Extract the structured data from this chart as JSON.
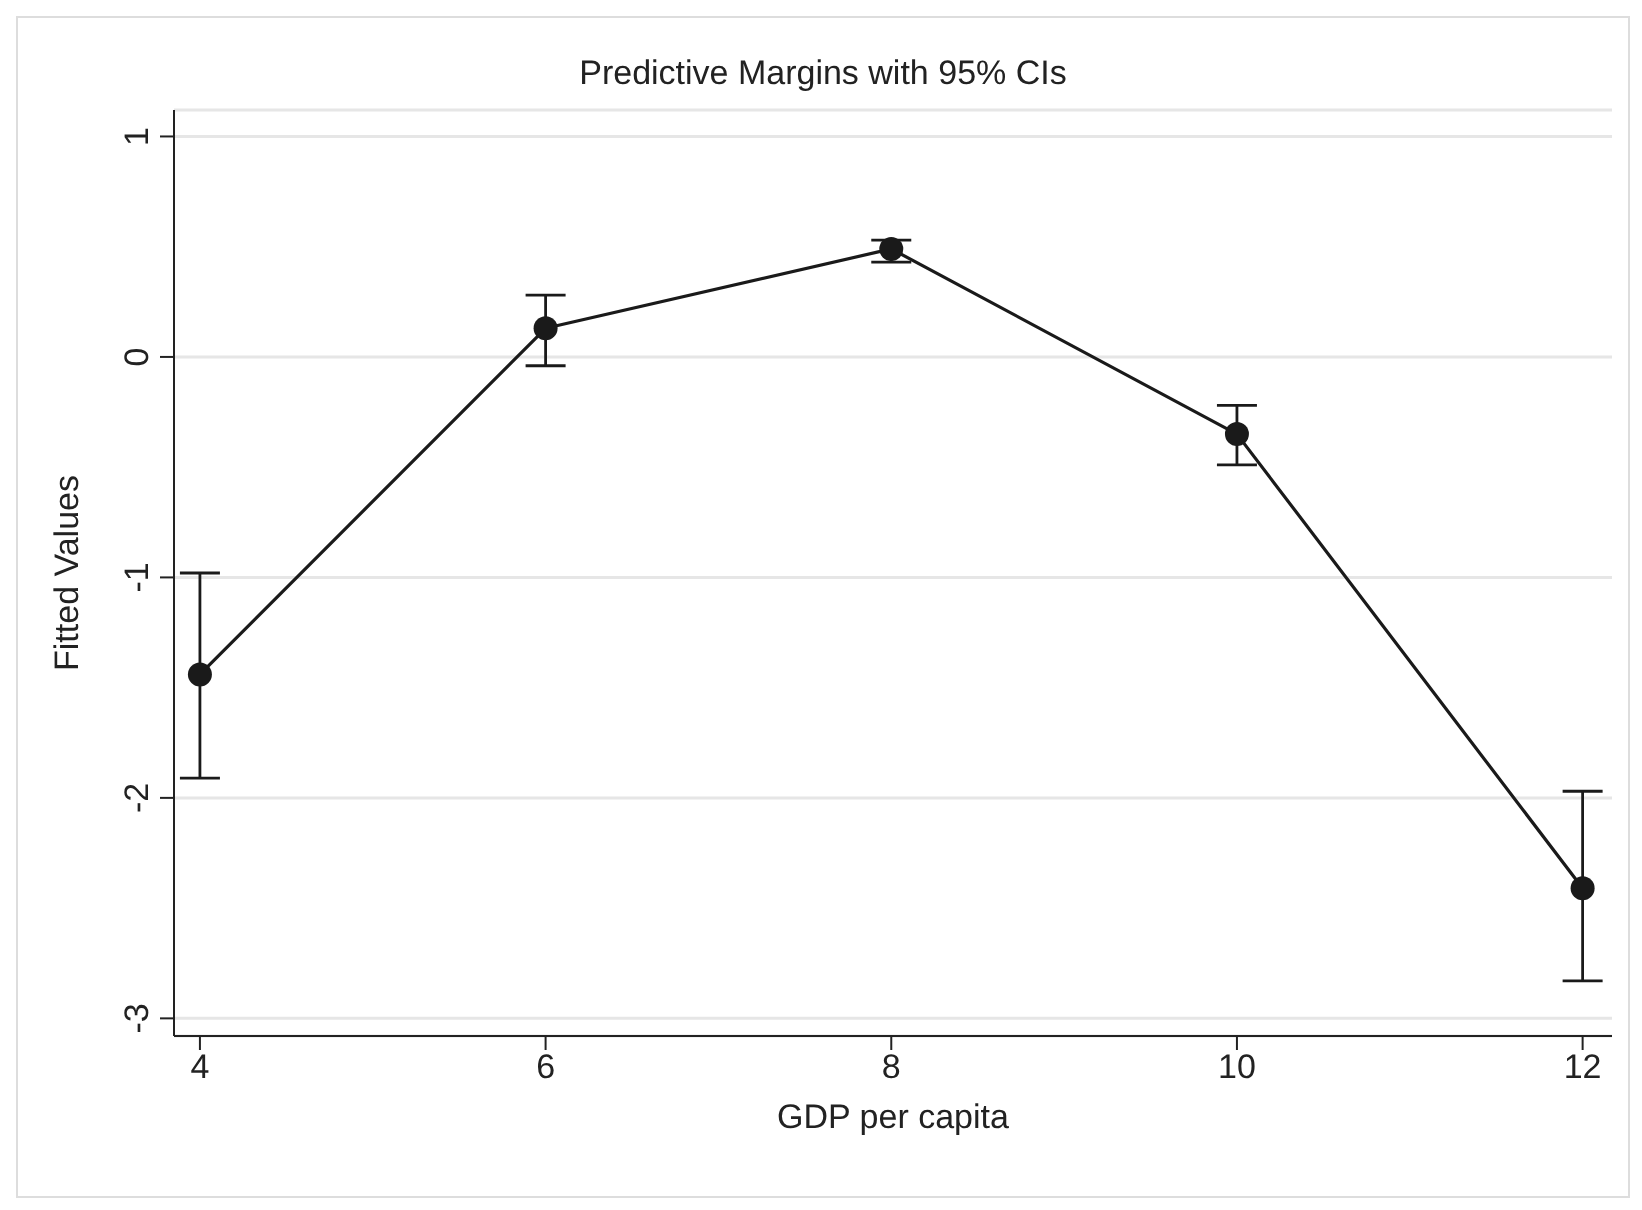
{
  "chart_data": {
    "type": "line",
    "title": "Predictive Margins with 95% CIs",
    "xlabel": "GDP per capita",
    "ylabel": "Fitted Values",
    "x": [
      4,
      6,
      8,
      10,
      12
    ],
    "series": [
      {
        "color": "#1a1a1a",
        "values": [
          -1.44,
          0.13,
          0.49,
          -0.35,
          -2.41
        ],
        "errors": [
          [
            -1.91,
            -0.98
          ],
          [
            -0.04,
            0.28
          ],
          [
            0.43,
            0.53
          ],
          [
            -0.49,
            -0.22
          ],
          [
            -2.83,
            -1.97
          ]
        ]
      }
    ],
    "xlim": [
      3.85,
      12.17
    ],
    "xticks": [
      4,
      6,
      8,
      10,
      12
    ],
    "ylim": [
      -3.08,
      1.12
    ],
    "yticks": [
      -3,
      -2,
      -1,
      0,
      1
    ],
    "grid": "y",
    "marker": "circle",
    "line_style": "solid"
  }
}
